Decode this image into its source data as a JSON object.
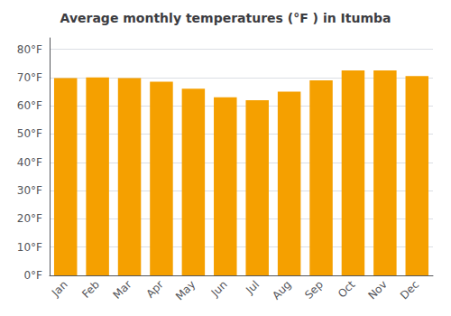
{
  "chart_data": {
    "type": "bar",
    "title": "Average monthly temperatures (°F ) in Itumba",
    "categories": [
      "Jan",
      "Feb",
      "Mar",
      "Apr",
      "May",
      "Jun",
      "Jul",
      "Aug",
      "Sep",
      "Oct",
      "Nov",
      "Dec"
    ],
    "values": [
      69.8,
      70.0,
      69.8,
      68.5,
      66.0,
      63.0,
      62.0,
      65.0,
      69.0,
      72.5,
      72.5,
      70.5
    ],
    "color": "#F5A000",
    "ylim": [
      0,
      84
    ],
    "yticks": [
      {
        "value": 0,
        "label": "0°F"
      },
      {
        "value": 10,
        "label": "10°F"
      },
      {
        "value": 20,
        "label": "20°F"
      },
      {
        "value": 30,
        "label": "30°F"
      },
      {
        "value": 40,
        "label": "40°F"
      },
      {
        "value": 50,
        "label": "50°F"
      },
      {
        "value": 60,
        "label": "60°F"
      },
      {
        "value": 70,
        "label": "70°F"
      },
      {
        "value": 80,
        "label": "80°F"
      }
    ],
    "grid": true
  }
}
